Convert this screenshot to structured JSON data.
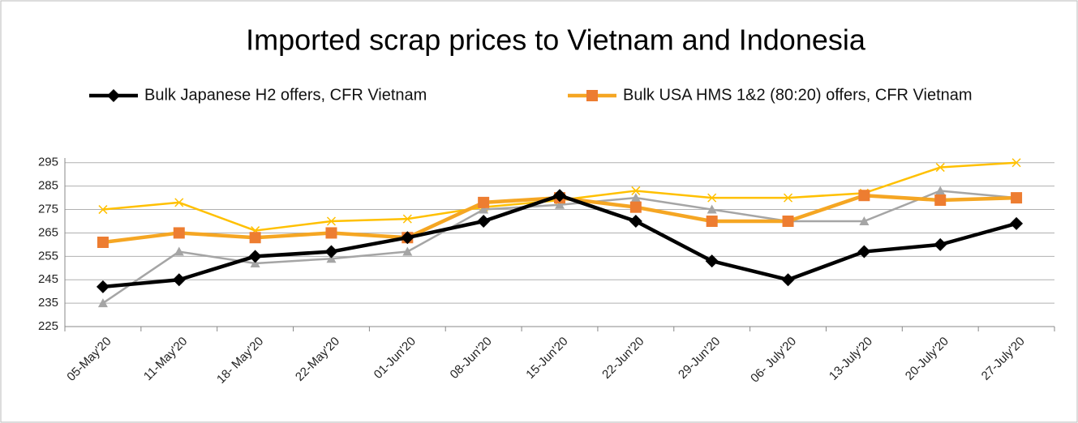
{
  "chart_data": {
    "type": "line",
    "title": "Imported scrap prices to Vietnam and Indonesia",
    "categories": [
      "05-May'20",
      "11-May'20",
      "18- May'20",
      "22-May'20",
      "01-Jun'20",
      "08-Jun'20",
      "15-Jun'20",
      "22-Jun'20",
      "29-Jun'20",
      "06- July'20",
      "13-July'20",
      "20-July'20",
      "27-July'20"
    ],
    "series": [
      {
        "name": "Bulk Japanese H2 offers, CFR Vietnam",
        "color": "#000000",
        "marker": "diamond",
        "values": [
          242,
          245,
          255,
          257,
          263,
          270,
          281,
          270,
          253,
          245,
          257,
          260,
          269
        ]
      },
      {
        "name": "Bulk USA HMS 1&2 (80:20) offers, CFR Vietnam",
        "color": "#f5a623",
        "marker": "square",
        "values": [
          261,
          265,
          263,
          265,
          263,
          278,
          280,
          276,
          270,
          270,
          281,
          279,
          280
        ]
      },
      {
        "color": "#a5a5a5",
        "marker": "triangle",
        "values": [
          235,
          257,
          252,
          254,
          257,
          275,
          277,
          280,
          275,
          270,
          270,
          283,
          280
        ]
      },
      {
        "color": "#ffc000",
        "marker": "x",
        "values": [
          275,
          278,
          266,
          270,
          271,
          276,
          279,
          283,
          280,
          280,
          282,
          293,
          295
        ]
      }
    ],
    "ylim": [
      225,
      297
    ],
    "yticks": [
      225,
      235,
      245,
      255,
      265,
      275,
      285,
      295
    ],
    "grid": true
  }
}
